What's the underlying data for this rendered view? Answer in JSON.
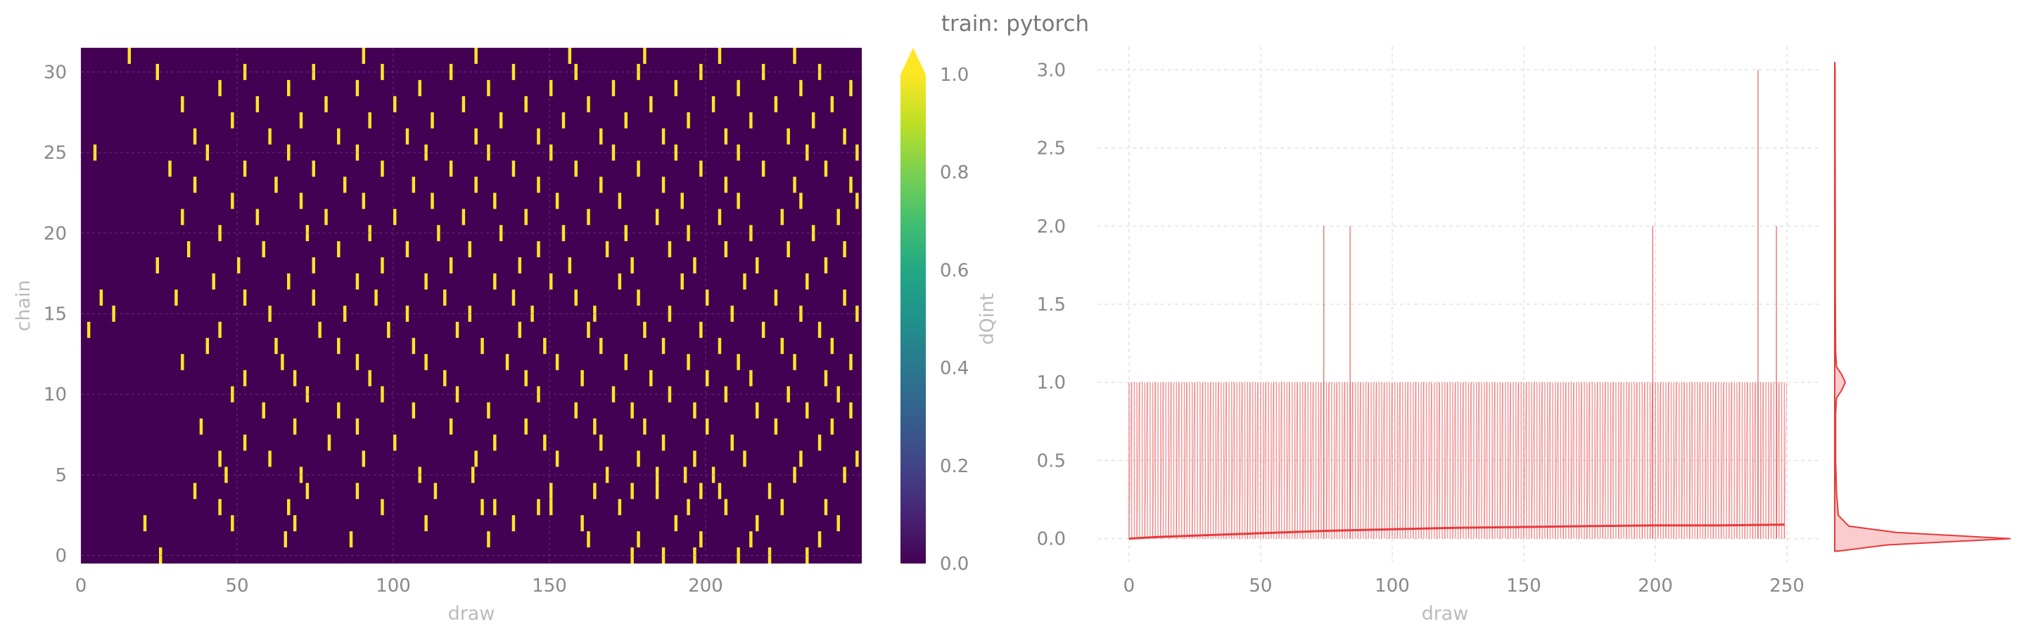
{
  "title": "train: pytorch",
  "colors": {
    "trace": "#e8393b",
    "heat_low": "#440154",
    "heat_high": "#fde725",
    "grid": "#e3e3e3",
    "tick_text": "#888888",
    "label_text": "#bbbbbb"
  },
  "chart_data": [
    {
      "type": "heatmap",
      "title": "",
      "xlabel": "draw",
      "ylabel": "chain",
      "colorbar_label": "dQint",
      "colormap": "viridis",
      "colorbar_extend": "max",
      "xlim": [
        0,
        250
      ],
      "ylim": [
        -0.5,
        31.5
      ],
      "clim": [
        0.0,
        1.0
      ],
      "grid": true,
      "n_chains": 32,
      "n_draws": 250,
      "xticks": [
        "0",
        "50",
        "100",
        "150",
        "200"
      ],
      "yticks": [
        "0",
        "5",
        "10",
        "15",
        "20",
        "25",
        "30"
      ],
      "colorbar_ticks": [
        "0.0",
        "0.2",
        "0.4",
        "0.6",
        "0.8",
        "1.0"
      ],
      "cells": [
        [
          0,
          25
        ],
        [
          0,
          176
        ],
        [
          0,
          186
        ],
        [
          0,
          196
        ],
        [
          0,
          210
        ],
        [
          0,
          220
        ],
        [
          0,
          232
        ],
        [
          1,
          65
        ],
        [
          1,
          86
        ],
        [
          1,
          130
        ],
        [
          1,
          162
        ],
        [
          1,
          178
        ],
        [
          1,
          198
        ],
        [
          1,
          214
        ],
        [
          1,
          236
        ],
        [
          2,
          20
        ],
        [
          2,
          48
        ],
        [
          2,
          68
        ],
        [
          2,
          110
        ],
        [
          2,
          138
        ],
        [
          2,
          160
        ],
        [
          2,
          190
        ],
        [
          2,
          216
        ],
        [
          2,
          242
        ],
        [
          3,
          44
        ],
        [
          3,
          66
        ],
        [
          3,
          96
        ],
        [
          3,
          128
        ],
        [
          3,
          132
        ],
        [
          3,
          146
        ],
        [
          3,
          150
        ],
        [
          3,
          172
        ],
        [
          3,
          194
        ],
        [
          3,
          206
        ],
        [
          3,
          224
        ],
        [
          3,
          238
        ],
        [
          4,
          36
        ],
        [
          4,
          72
        ],
        [
          4,
          88
        ],
        [
          4,
          113
        ],
        [
          4,
          150
        ],
        [
          4,
          164
        ],
        [
          4,
          176
        ],
        [
          4,
          184
        ],
        [
          4,
          198
        ],
        [
          4,
          204
        ],
        [
          4,
          220
        ],
        [
          5,
          46
        ],
        [
          5,
          70
        ],
        [
          5,
          108
        ],
        [
          5,
          125
        ],
        [
          5,
          168
        ],
        [
          5,
          184
        ],
        [
          5,
          193
        ],
        [
          5,
          202
        ],
        [
          5,
          228
        ],
        [
          5,
          244
        ],
        [
          6,
          44
        ],
        [
          6,
          60
        ],
        [
          6,
          90
        ],
        [
          6,
          126
        ],
        [
          6,
          152
        ],
        [
          6,
          178
        ],
        [
          6,
          196
        ],
        [
          6,
          212
        ],
        [
          6,
          230
        ],
        [
          6,
          248
        ],
        [
          7,
          52
        ],
        [
          7,
          79
        ],
        [
          7,
          100
        ],
        [
          7,
          132
        ],
        [
          7,
          148
        ],
        [
          7,
          166
        ],
        [
          7,
          186
        ],
        [
          7,
          208
        ],
        [
          7,
          236
        ],
        [
          8,
          38
        ],
        [
          8,
          68
        ],
        [
          8,
          88
        ],
        [
          8,
          118
        ],
        [
          8,
          142
        ],
        [
          8,
          164
        ],
        [
          8,
          180
        ],
        [
          8,
          200
        ],
        [
          8,
          222
        ],
        [
          8,
          240
        ],
        [
          9,
          58
        ],
        [
          9,
          82
        ],
        [
          9,
          106
        ],
        [
          9,
          130
        ],
        [
          9,
          158
        ],
        [
          9,
          176
        ],
        [
          9,
          196
        ],
        [
          9,
          216
        ],
        [
          9,
          232
        ],
        [
          9,
          246
        ],
        [
          10,
          48
        ],
        [
          10,
          72
        ],
        [
          10,
          96
        ],
        [
          10,
          120
        ],
        [
          10,
          146
        ],
        [
          10,
          170
        ],
        [
          10,
          188
        ],
        [
          10,
          206
        ],
        [
          10,
          226
        ],
        [
          10,
          242
        ],
        [
          11,
          52
        ],
        [
          11,
          68
        ],
        [
          11,
          92
        ],
        [
          11,
          116
        ],
        [
          11,
          142
        ],
        [
          11,
          160
        ],
        [
          11,
          182
        ],
        [
          11,
          200
        ],
        [
          11,
          214
        ],
        [
          11,
          238
        ],
        [
          12,
          32
        ],
        [
          12,
          64
        ],
        [
          12,
          88
        ],
        [
          12,
          110
        ],
        [
          12,
          136
        ],
        [
          12,
          152
        ],
        [
          12,
          174
        ],
        [
          12,
          194
        ],
        [
          12,
          210
        ],
        [
          12,
          228
        ],
        [
          12,
          246
        ],
        [
          13,
          40
        ],
        [
          13,
          62
        ],
        [
          13,
          82
        ],
        [
          13,
          106
        ],
        [
          13,
          128
        ],
        [
          13,
          148
        ],
        [
          13,
          166
        ],
        [
          13,
          186
        ],
        [
          13,
          204
        ],
        [
          13,
          224
        ],
        [
          13,
          240
        ],
        [
          14,
          2
        ],
        [
          14,
          44
        ],
        [
          14,
          76
        ],
        [
          14,
          98
        ],
        [
          14,
          120
        ],
        [
          14,
          140
        ],
        [
          14,
          162
        ],
        [
          14,
          180
        ],
        [
          14,
          198
        ],
        [
          14,
          218
        ],
        [
          14,
          236
        ],
        [
          15,
          10
        ],
        [
          15,
          60
        ],
        [
          15,
          84
        ],
        [
          15,
          104
        ],
        [
          15,
          124
        ],
        [
          15,
          144
        ],
        [
          15,
          164
        ],
        [
          15,
          188
        ],
        [
          15,
          208
        ],
        [
          15,
          230
        ],
        [
          15,
          248
        ],
        [
          16,
          6
        ],
        [
          16,
          30
        ],
        [
          16,
          52
        ],
        [
          16,
          74
        ],
        [
          16,
          94
        ],
        [
          16,
          116
        ],
        [
          16,
          138
        ],
        [
          16,
          158
        ],
        [
          16,
          178
        ],
        [
          16,
          200
        ],
        [
          16,
          222
        ],
        [
          16,
          244
        ],
        [
          17,
          42
        ],
        [
          17,
          66
        ],
        [
          17,
          88
        ],
        [
          17,
          110
        ],
        [
          17,
          132
        ],
        [
          17,
          150
        ],
        [
          17,
          172
        ],
        [
          17,
          192
        ],
        [
          17,
          212
        ],
        [
          17,
          232
        ],
        [
          18,
          24
        ],
        [
          18,
          50
        ],
        [
          18,
          74
        ],
        [
          18,
          96
        ],
        [
          18,
          118
        ],
        [
          18,
          140
        ],
        [
          18,
          156
        ],
        [
          18,
          176
        ],
        [
          18,
          196
        ],
        [
          18,
          216
        ],
        [
          18,
          238
        ],
        [
          19,
          34
        ],
        [
          19,
          58
        ],
        [
          19,
          82
        ],
        [
          19,
          104
        ],
        [
          19,
          124
        ],
        [
          19,
          146
        ],
        [
          19,
          168
        ],
        [
          19,
          188
        ],
        [
          19,
          206
        ],
        [
          19,
          226
        ],
        [
          19,
          244
        ],
        [
          20,
          44
        ],
        [
          20,
          72
        ],
        [
          20,
          92
        ],
        [
          20,
          114
        ],
        [
          20,
          134
        ],
        [
          20,
          154
        ],
        [
          20,
          174
        ],
        [
          20,
          194
        ],
        [
          20,
          214
        ],
        [
          20,
          234
        ],
        [
          21,
          32
        ],
        [
          21,
          56
        ],
        [
          21,
          78
        ],
        [
          21,
          100
        ],
        [
          21,
          122
        ],
        [
          21,
          142
        ],
        [
          21,
          162
        ],
        [
          21,
          184
        ],
        [
          21,
          204
        ],
        [
          21,
          224
        ],
        [
          21,
          242
        ],
        [
          22,
          48
        ],
        [
          22,
          70
        ],
        [
          22,
          90
        ],
        [
          22,
          112
        ],
        [
          22,
          132
        ],
        [
          22,
          152
        ],
        [
          22,
          172
        ],
        [
          22,
          192
        ],
        [
          22,
          210
        ],
        [
          22,
          230
        ],
        [
          22,
          248
        ],
        [
          23,
          36
        ],
        [
          23,
          62
        ],
        [
          23,
          84
        ],
        [
          23,
          106
        ],
        [
          23,
          126
        ],
        [
          23,
          146
        ],
        [
          23,
          166
        ],
        [
          23,
          186
        ],
        [
          23,
          206
        ],
        [
          23,
          228
        ],
        [
          23,
          246
        ],
        [
          24,
          28
        ],
        [
          24,
          52
        ],
        [
          24,
          74
        ],
        [
          24,
          96
        ],
        [
          24,
          118
        ],
        [
          24,
          138
        ],
        [
          24,
          158
        ],
        [
          24,
          178
        ],
        [
          24,
          198
        ],
        [
          24,
          218
        ],
        [
          24,
          238
        ],
        [
          25,
          4
        ],
        [
          25,
          40
        ],
        [
          25,
          66
        ],
        [
          25,
          88
        ],
        [
          25,
          110
        ],
        [
          25,
          130
        ],
        [
          25,
          150
        ],
        [
          25,
          170
        ],
        [
          25,
          190
        ],
        [
          25,
          210
        ],
        [
          25,
          232
        ],
        [
          25,
          248
        ],
        [
          26,
          36
        ],
        [
          26,
          60
        ],
        [
          26,
          82
        ],
        [
          26,
          104
        ],
        [
          26,
          126
        ],
        [
          26,
          146
        ],
        [
          26,
          166
        ],
        [
          26,
          186
        ],
        [
          26,
          206
        ],
        [
          26,
          226
        ],
        [
          26,
          244
        ],
        [
          27,
          48
        ],
        [
          27,
          70
        ],
        [
          27,
          92
        ],
        [
          27,
          112
        ],
        [
          27,
          134
        ],
        [
          27,
          154
        ],
        [
          27,
          174
        ],
        [
          27,
          194
        ],
        [
          27,
          214
        ],
        [
          27,
          234
        ],
        [
          28,
          32
        ],
        [
          28,
          56
        ],
        [
          28,
          78
        ],
        [
          28,
          100
        ],
        [
          28,
          122
        ],
        [
          28,
          142
        ],
        [
          28,
          162
        ],
        [
          28,
          182
        ],
        [
          28,
          202
        ],
        [
          28,
          222
        ],
        [
          28,
          240
        ],
        [
          29,
          44
        ],
        [
          29,
          66
        ],
        [
          29,
          88
        ],
        [
          29,
          108
        ],
        [
          29,
          130
        ],
        [
          29,
          150
        ],
        [
          29,
          170
        ],
        [
          29,
          190
        ],
        [
          29,
          210
        ],
        [
          29,
          230
        ],
        [
          29,
          246
        ],
        [
          30,
          24
        ],
        [
          30,
          52
        ],
        [
          30,
          74
        ],
        [
          30,
          96
        ],
        [
          30,
          118
        ],
        [
          30,
          138
        ],
        [
          30,
          158
        ],
        [
          30,
          178
        ],
        [
          30,
          198
        ],
        [
          30,
          218
        ],
        [
          30,
          236
        ],
        [
          31,
          15
        ],
        [
          31,
          90
        ],
        [
          31,
          126
        ],
        [
          31,
          156
        ],
        [
          31,
          180
        ],
        [
          31,
          204
        ],
        [
          31,
          228
        ]
      ]
    },
    {
      "type": "line",
      "title": "",
      "xlabel": "draw",
      "ylabel": "dQint",
      "xlim": [
        -12,
        262
      ],
      "ylim": [
        -0.15,
        3.15
      ],
      "grid": true,
      "xticks": [
        "0",
        "50",
        "100",
        "150",
        "200",
        "250"
      ],
      "yticks": [
        "0.0",
        "0.5",
        "1.0",
        "1.5",
        "2.0",
        "2.5",
        "3.0"
      ],
      "n_draws": 250,
      "trace_values": [
        0,
        1
      ],
      "spikes": [
        {
          "x": 74,
          "y": 2.0
        },
        {
          "x": 84,
          "y": 2.0
        },
        {
          "x": 199,
          "y": 2.0
        },
        {
          "x": 239,
          "y": 3.0
        },
        {
          "x": 246,
          "y": 2.0
        }
      ],
      "mean_line": {
        "x": [
          0,
          10,
          25,
          50,
          75,
          100,
          125,
          150,
          175,
          200,
          225,
          249
        ],
        "y": [
          0.0,
          0.01,
          0.02,
          0.035,
          0.05,
          0.06,
          0.07,
          0.075,
          0.08,
          0.085,
          0.085,
          0.09
        ]
      },
      "marginal_kde": {
        "y": [
          -0.08,
          -0.04,
          0.0,
          0.04,
          0.08,
          0.15,
          0.3,
          0.5,
          0.8,
          0.9,
          0.95,
          1.0,
          1.05,
          1.1,
          1.2,
          1.6,
          2.0,
          2.5,
          3.0,
          3.05
        ],
        "density": [
          0.02,
          0.3,
          1.0,
          0.35,
          0.08,
          0.02,
          0.01,
          0.005,
          0.005,
          0.01,
          0.04,
          0.06,
          0.04,
          0.01,
          0.005,
          0.003,
          0.003,
          0.002,
          0.002,
          0.0
        ]
      }
    }
  ]
}
